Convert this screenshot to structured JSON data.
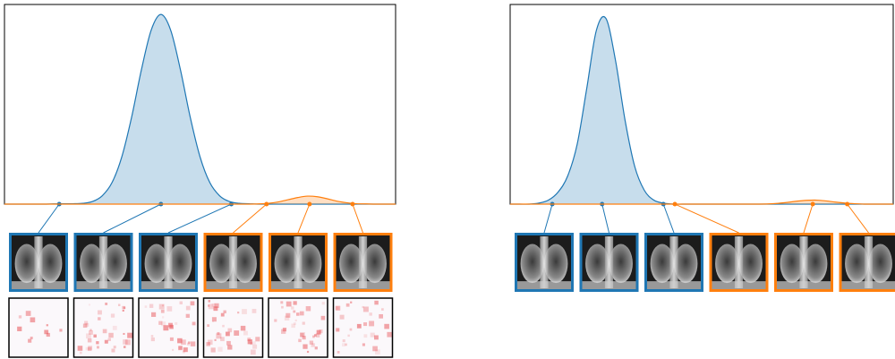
{
  "chart_data": [
    {
      "type": "density",
      "x": [
        0,
        0.25,
        0.5,
        0.75,
        1,
        1.25,
        1.5,
        1.75,
        2,
        2.25,
        2.5,
        2.75,
        3,
        3.25,
        3.5,
        3.75,
        4,
        4.25,
        4.5,
        4.75,
        5,
        5.25,
        5.5,
        5.75,
        6,
        6.25,
        6.5,
        6.75,
        7,
        7.25,
        7.5,
        7.75,
        8,
        8.25,
        8.5,
        8.75,
        9,
        9.25,
        9.5,
        9.75,
        10
      ],
      "xlim": [
        0,
        10
      ],
      "ylim": [
        0,
        1
      ],
      "saliency": true,
      "series": [
        {
          "color": "#1f77b4",
          "values": [
            0,
            0,
            0,
            0,
            0,
            0.001,
            0.002,
            0.002,
            0.004,
            0.013,
            0.042,
            0.108,
            0.237,
            0.435,
            0.672,
            0.871,
            0.95,
            0.871,
            0.672,
            0.435,
            0.237,
            0.108,
            0.042,
            0.013,
            0.004,
            0.002,
            0,
            0,
            0,
            0,
            0,
            0,
            0,
            0,
            0,
            0,
            0,
            0,
            0,
            0,
            0
          ],
          "samples": [
            1.4,
            4.0,
            5.8
          ]
        },
        {
          "color": "#ff7f0e",
          "values": [
            0,
            0,
            0,
            0,
            0,
            0,
            0,
            0,
            0,
            0,
            0,
            0,
            0,
            0,
            0,
            0,
            0,
            0,
            0,
            0,
            0,
            0,
            0,
            0,
            0,
            0,
            0.001,
            0.004,
            0.011,
            0.022,
            0.033,
            0.04,
            0.037,
            0.027,
            0.015,
            0.007,
            0.002,
            0.001,
            0,
            0,
            0
          ],
          "samples": [
            6.7,
            7.8,
            8.9
          ]
        }
      ]
    },
    {
      "type": "density",
      "x": [
        0,
        0.25,
        0.5,
        0.75,
        1,
        1.25,
        1.5,
        1.75,
        2,
        2.25,
        2.5,
        2.75,
        3,
        3.25,
        3.5,
        3.75,
        4,
        4.25,
        4.5,
        4.75,
        5,
        5.25,
        5.5,
        5.75,
        6,
        6.25,
        6.5,
        6.75,
        7,
        7.25,
        7.5,
        7.75,
        8,
        8.25,
        8.5,
        8.75,
        9,
        9.25,
        9.5,
        9.75,
        10
      ],
      "xlim": [
        0,
        10
      ],
      "ylim": [
        0,
        1
      ],
      "saliency": false,
      "series": [
        {
          "color": "#1f77b4",
          "values": [
            0,
            0,
            0,
            0.005,
            0.02,
            0.06,
            0.14,
            0.3,
            0.58,
            0.87,
            0.93,
            0.72,
            0.42,
            0.19,
            0.07,
            0.02,
            0.005,
            0,
            0,
            0,
            0,
            0,
            0,
            0,
            0,
            0,
            0,
            0,
            0,
            0,
            0,
            0,
            0,
            0,
            0,
            0,
            0,
            0,
            0,
            0,
            0
          ],
          "samples": [
            1.1,
            2.4,
            4.0
          ]
        },
        {
          "color": "#ff7f0e",
          "values": [
            0,
            0,
            0,
            0,
            0,
            0,
            0,
            0,
            0,
            0,
            0,
            0,
            0,
            0,
            0,
            0,
            0,
            0,
            0,
            0,
            0,
            0,
            0,
            0,
            0,
            0,
            0,
            0.001,
            0.004,
            0.009,
            0.015,
            0.019,
            0.02,
            0.016,
            0.01,
            0.005,
            0.002,
            0,
            0,
            0,
            0
          ],
          "samples": [
            4.3,
            7.9,
            8.8
          ]
        }
      ]
    }
  ]
}
